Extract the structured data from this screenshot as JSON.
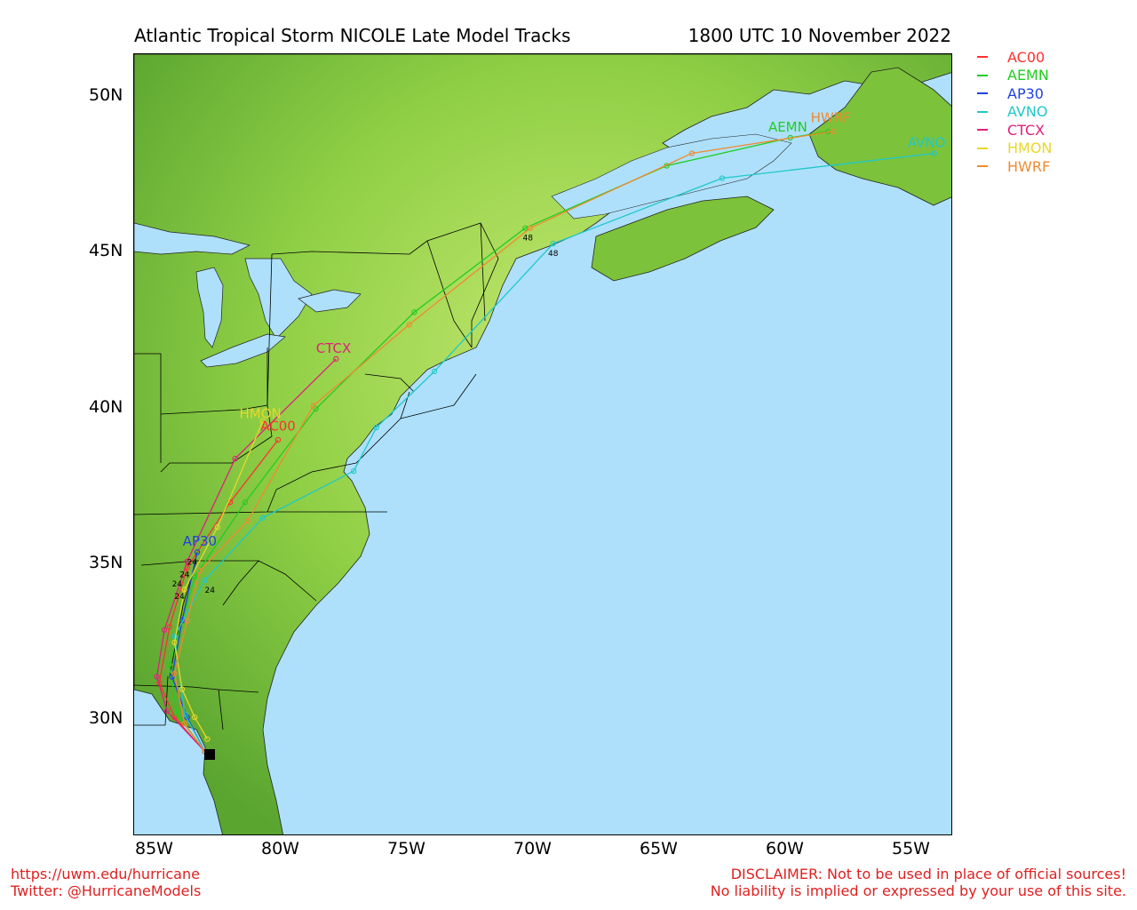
{
  "header": {
    "title": "Atlantic Tropical Storm NICOLE Late Model Tracks",
    "time": "1800 UTC 10 November 2022"
  },
  "colors": {
    "ocean": "#aee0fb",
    "land_light": "#b6e35d",
    "land_dark": "#4f9a28",
    "borders": "#000000"
  },
  "axes": {
    "lat_labels": [
      "50N",
      "45N",
      "40N",
      "35N",
      "30N"
    ],
    "lon_labels": [
      "85W",
      "80W",
      "75W",
      "70W",
      "65W",
      "60W",
      "55W"
    ]
  },
  "legend": [
    {
      "name": "AC00",
      "color": "#ff3030"
    },
    {
      "name": "AEMN",
      "color": "#22cc22"
    },
    {
      "name": "AP30",
      "color": "#2040e0"
    },
    {
      "name": "AVNO",
      "color": "#20c8c8"
    },
    {
      "name": "CTCX",
      "color": "#e0207a"
    },
    {
      "name": "HMON",
      "color": "#e8d82a"
    },
    {
      "name": "HWRF",
      "color": "#f08a30"
    }
  ],
  "tracks": [
    {
      "name": "AC00",
      "color": "#ff3030",
      "points": [
        [
          -83.1,
          29.0
        ],
        [
          -84.3,
          30.1
        ],
        [
          -84.9,
          31.2
        ],
        [
          -84.5,
          33.0
        ],
        [
          -83.8,
          34.9
        ],
        [
          -82.1,
          37.0
        ],
        [
          -80.2,
          39.0
        ]
      ]
    },
    {
      "name": "AEMN",
      "color": "#22cc22",
      "points": [
        [
          -83.1,
          29.0
        ],
        [
          -84.2,
          30.2
        ],
        [
          -84.5,
          31.8
        ],
        [
          -84.0,
          33.2
        ],
        [
          -83.5,
          34.6
        ],
        [
          -81.5,
          37.0
        ],
        [
          -78.7,
          40.0
        ],
        [
          -74.8,
          43.1
        ],
        [
          -70.4,
          45.8
        ],
        [
          -64.8,
          47.8
        ],
        [
          -59.9,
          48.7
        ],
        [
          -58.4,
          48.9
        ]
      ]
    },
    {
      "name": "AP30",
      "color": "#2040e0",
      "points": [
        [
          -83.1,
          29.0
        ],
        [
          -83.8,
          30.1
        ],
        [
          -84.4,
          31.4
        ],
        [
          -84.0,
          33.2
        ],
        [
          -83.4,
          35.4
        ]
      ]
    },
    {
      "name": "AVNO",
      "color": "#20c8c8",
      "points": [
        [
          -83.1,
          29.0
        ],
        [
          -83.9,
          30.2
        ],
        [
          -84.3,
          32.7
        ],
        [
          -83.1,
          34.5
        ],
        [
          -80.8,
          36.5
        ],
        [
          -77.2,
          38.0
        ],
        [
          -76.3,
          39.4
        ],
        [
          -74.0,
          41.2
        ],
        [
          -69.3,
          45.3
        ],
        [
          -62.6,
          47.4
        ],
        [
          -54.2,
          48.2
        ]
      ]
    },
    {
      "name": "CTCX",
      "color": "#e0207a",
      "points": [
        [
          -83.1,
          29.0
        ],
        [
          -84.6,
          30.3
        ],
        [
          -85.0,
          31.4
        ],
        [
          -84.7,
          32.9
        ],
        [
          -83.8,
          35.1
        ],
        [
          -81.9,
          38.4
        ],
        [
          -77.9,
          41.6
        ]
      ]
    },
    {
      "name": "HMON",
      "color": "#e8d82a",
      "points": [
        [
          -83.0,
          29.4
        ],
        [
          -83.5,
          30.1
        ],
        [
          -84.0,
          31.0
        ],
        [
          -84.3,
          32.5
        ],
        [
          -83.9,
          34.2
        ],
        [
          -82.6,
          36.2
        ],
        [
          -80.8,
          39.6
        ]
      ]
    },
    {
      "name": "HWRF",
      "color": "#f08a30",
      "points": [
        [
          -83.1,
          29.0
        ],
        [
          -83.9,
          29.9
        ],
        [
          -84.3,
          31.5
        ],
        [
          -83.8,
          33.2
        ],
        [
          -83.3,
          34.8
        ],
        [
          -81.4,
          36.4
        ],
        [
          -78.8,
          40.1
        ],
        [
          -75.0,
          42.7
        ],
        [
          -70.2,
          45.8
        ],
        [
          -63.8,
          48.2
        ],
        [
          -58.2,
          48.9
        ]
      ]
    }
  ],
  "track_labels": [
    {
      "text": "HWRF",
      "color": "#f08a30",
      "lon": -58.3,
      "lat": 49.2
    },
    {
      "text": "AEMN",
      "color": "#22cc22",
      "lon": -60.0,
      "lat": 48.9
    },
    {
      "text": "AVNO",
      "color": "#20c8c8",
      "lon": -54.5,
      "lat": 48.4
    },
    {
      "text": "CTCX",
      "color": "#e0207a",
      "lon": -78.0,
      "lat": 41.8
    },
    {
      "text": "HMON",
      "color": "#e8d82a",
      "lon": -80.9,
      "lat": 39.7
    },
    {
      "text": "AC00",
      "color": "#ff3030",
      "lon": -80.2,
      "lat": 39.3
    },
    {
      "text": "AP30",
      "color": "#2040e0",
      "lon": -83.3,
      "lat": 35.6
    }
  ],
  "forecast_hour_labels": [
    {
      "text": "48",
      "lon": -70.3,
      "lat": 45.4
    },
    {
      "text": "48",
      "lon": -69.3,
      "lat": 44.9
    },
    {
      "text": "24",
      "lon": -83.6,
      "lat": 35.0
    },
    {
      "text": "24",
      "lon": -83.9,
      "lat": 34.6
    },
    {
      "text": "24",
      "lon": -84.2,
      "lat": 34.3
    },
    {
      "text": "24",
      "lon": -84.1,
      "lat": 33.9
    },
    {
      "text": "24",
      "lon": -82.9,
      "lat": 34.1
    }
  ],
  "footer": {
    "left_line1": "https://uwm.edu/hurricane",
    "left_line2": "Twitter: @HurricaneModels",
    "right_line1": "DISCLAIMER: Not to be used in place of official sources!",
    "right_line2": "No liability is implied or expressed by your use of this site."
  }
}
